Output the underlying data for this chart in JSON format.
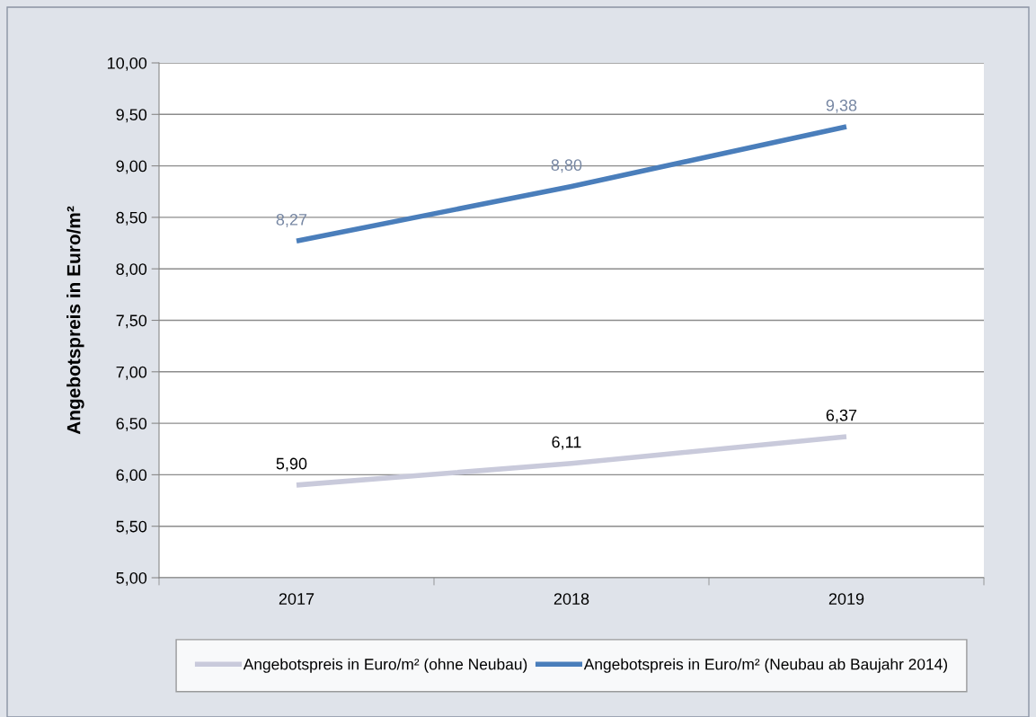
{
  "chart_data": {
    "type": "line",
    "ylabel": "Angebotspreis in Euro/m²",
    "categories": [
      "2017",
      "2018",
      "2019"
    ],
    "series": [
      {
        "name": "Angebotspreis in Euro/m² (ohne Neubau)",
        "color": "#c9cadb",
        "values": [
          5.9,
          6.11,
          6.37
        ],
        "value_labels": [
          "5,90",
          "6,11",
          "6,37"
        ]
      },
      {
        "name": "Angebotspreis in Euro/m² (Neubau ab Baujahr 2014)",
        "color": "#4a7ebb",
        "values": [
          8.27,
          8.8,
          9.38
        ],
        "value_labels": [
          "8,27",
          "8,80",
          "9,38"
        ]
      }
    ],
    "ylim": [
      5,
      10
    ],
    "yticks": [
      {
        "value": 5,
        "label": "5,00"
      },
      {
        "value": 5.5,
        "label": "5,50"
      },
      {
        "value": 6,
        "label": "6,00"
      },
      {
        "value": 6.5,
        "label": "6,50"
      },
      {
        "value": 7,
        "label": "7,00"
      },
      {
        "value": 7.5,
        "label": "7,50"
      },
      {
        "value": 8,
        "label": "8,00"
      },
      {
        "value": 8.5,
        "label": "8,50"
      },
      {
        "value": 9,
        "label": "9,00"
      },
      {
        "value": 9.5,
        "label": "9,50"
      },
      {
        "value": 10,
        "label": "10,00"
      }
    ],
    "grid": "y",
    "legend": "bottom",
    "marker": "none",
    "line_style": "solid"
  }
}
